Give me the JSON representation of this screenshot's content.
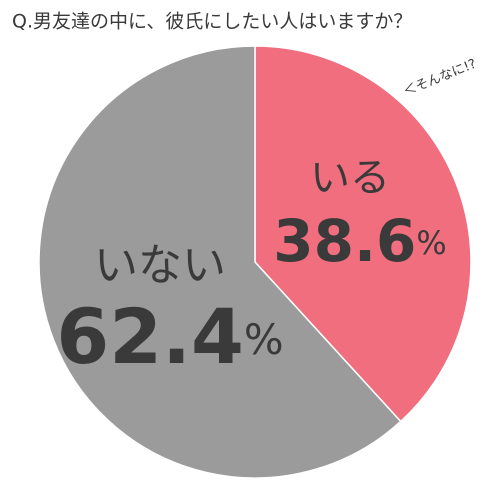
{
  "chart_data": {
    "type": "pie",
    "title": "Q.男友達の中に、彼氏にしたい人はいますか？",
    "categories": [
      "いる",
      "いない"
    ],
    "values": [
      38.6,
      62.4
    ],
    "value_labels": [
      "38.6%",
      "62.4%"
    ],
    "colors": [
      "#f06e7e",
      "#9b9b9b"
    ],
    "annotation": "＜そんなに!?"
  }
}
